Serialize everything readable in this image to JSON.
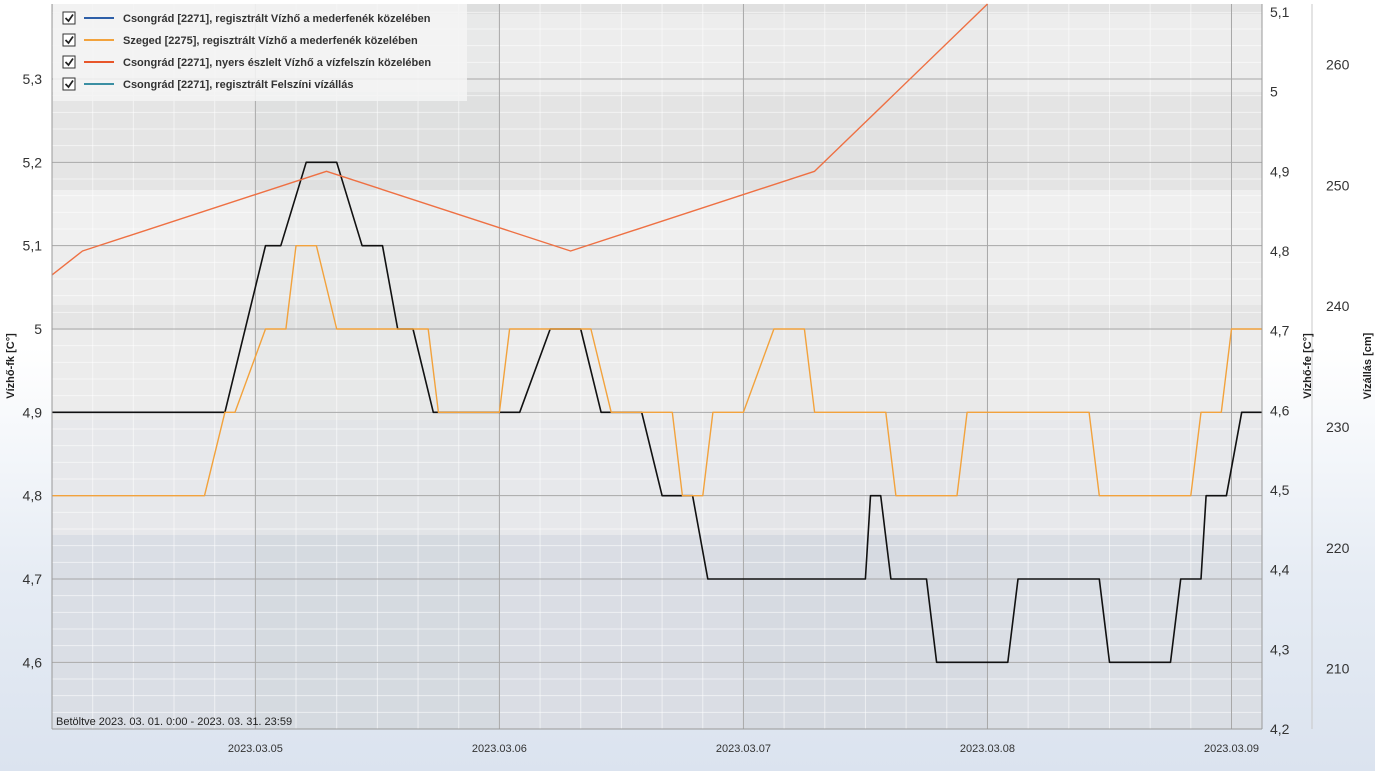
{
  "status_text": "Betöltve 2023. 03. 01. 0:00 - 2023. 03. 31. 23:59",
  "chart_data": {
    "type": "line",
    "x_tick_labels": [
      "2023.03.05",
      "2023.03.06",
      "2023.03.07",
      "2023.03.08",
      "2023.03.09"
    ],
    "x_range": [
      "2023-03-04 04:00",
      "2023-03-09 03:00"
    ],
    "grid": true,
    "legend_placement": "top-left",
    "axes": {
      "left": {
        "label": "Vízhő-fk [C°]",
        "range": [
          4.52,
          5.39
        ],
        "ticks": [
          "4,6",
          "4,7",
          "4,8",
          "4,9",
          "5",
          "5,1",
          "5,2",
          "5,3"
        ]
      },
      "right1": {
        "label": "Vízhő-fe [C°]",
        "range": [
          4.2,
          5.11
        ],
        "ticks": [
          "4,2",
          "4,3",
          "4,4",
          "4,5",
          "4,6",
          "4,7",
          "4,8",
          "4,9",
          "5",
          "5,1"
        ]
      },
      "right2": {
        "label": "Vízállás [cm]",
        "range": [
          205,
          265
        ],
        "ticks": [
          "210",
          "220",
          "230",
          "240",
          "250",
          "260"
        ]
      }
    },
    "series": [
      {
        "name": "Csongrád [2271], regisztrált Vízhő a mederfenék közelében",
        "legend_color": "#2e5fa8",
        "color": "#111111",
        "axis": "left",
        "points": [
          [
            "2023-03-04 04:00",
            4.9
          ],
          [
            "2023-03-04 21:00",
            4.9
          ],
          [
            "2023-03-05 01:00",
            5.1
          ],
          [
            "2023-03-05 02:30",
            5.1
          ],
          [
            "2023-03-05 05:00",
            5.2
          ],
          [
            "2023-03-05 08:00",
            5.2
          ],
          [
            "2023-03-05 10:30",
            5.1
          ],
          [
            "2023-03-05 12:00",
            5.1
          ],
          [
            "2023-03-05 12:30",
            5.1
          ],
          [
            "2023-03-05 14:00",
            5.0
          ],
          [
            "2023-03-05 15:30",
            5.0
          ],
          [
            "2023-03-05 17:30",
            4.9
          ],
          [
            "2023-03-06 02:00",
            4.9
          ],
          [
            "2023-03-06 05:00",
            5.0
          ],
          [
            "2023-03-06 08:00",
            5.0
          ],
          [
            "2023-03-06 10:00",
            4.9
          ],
          [
            "2023-03-06 14:00",
            4.9
          ],
          [
            "2023-03-06 16:00",
            4.8
          ],
          [
            "2023-03-06 19:00",
            4.8
          ],
          [
            "2023-03-06 20:30",
            4.7
          ],
          [
            "2023-03-07 12:00",
            4.7
          ],
          [
            "2023-03-07 12:30",
            4.8
          ],
          [
            "2023-03-07 13:30",
            4.8
          ],
          [
            "2023-03-07 14:30",
            4.7
          ],
          [
            "2023-03-07 18:00",
            4.7
          ],
          [
            "2023-03-07 19:00",
            4.6
          ],
          [
            "2023-03-08 02:00",
            4.6
          ],
          [
            "2023-03-08 03:00",
            4.7
          ],
          [
            "2023-03-08 11:00",
            4.7
          ],
          [
            "2023-03-08 12:00",
            4.6
          ],
          [
            "2023-03-08 18:00",
            4.6
          ],
          [
            "2023-03-08 19:00",
            4.7
          ],
          [
            "2023-03-08 21:00",
            4.7
          ],
          [
            "2023-03-08 21:30",
            4.8
          ],
          [
            "2023-03-08 23:30",
            4.8
          ],
          [
            "2023-03-09 01:00",
            4.9
          ],
          [
            "2023-03-09 03:00",
            4.9
          ]
        ]
      },
      {
        "name": "Szeged [2275], regisztrált Vízhő a mederfenék közelében",
        "legend_color": "#f2a23c",
        "color": "#f2a23c",
        "axis": "left",
        "points": [
          [
            "2023-03-04 04:00",
            4.8
          ],
          [
            "2023-03-04 19:00",
            4.8
          ],
          [
            "2023-03-04 21:00",
            4.9
          ],
          [
            "2023-03-04 22:00",
            4.9
          ],
          [
            "2023-03-05 01:00",
            5.0
          ],
          [
            "2023-03-05 03:00",
            5.0
          ],
          [
            "2023-03-05 04:00",
            5.1
          ],
          [
            "2023-03-05 06:00",
            5.1
          ],
          [
            "2023-03-05 08:00",
            5.0
          ],
          [
            "2023-03-05 17:00",
            5.0
          ],
          [
            "2023-03-05 18:00",
            4.9
          ],
          [
            "2023-03-06 00:00",
            4.9
          ],
          [
            "2023-03-06 01:00",
            5.0
          ],
          [
            "2023-03-06 09:00",
            5.0
          ],
          [
            "2023-03-06 11:00",
            4.9
          ],
          [
            "2023-03-06 17:00",
            4.9
          ],
          [
            "2023-03-06 18:00",
            4.8
          ],
          [
            "2023-03-06 20:00",
            4.8
          ],
          [
            "2023-03-06 21:00",
            4.9
          ],
          [
            "2023-03-07 00:00",
            4.9
          ],
          [
            "2023-03-07 03:00",
            5.0
          ],
          [
            "2023-03-07 06:00",
            5.0
          ],
          [
            "2023-03-07 07:00",
            4.9
          ],
          [
            "2023-03-07 14:00",
            4.9
          ],
          [
            "2023-03-07 15:00",
            4.8
          ],
          [
            "2023-03-07 21:00",
            4.8
          ],
          [
            "2023-03-07 22:00",
            4.9
          ],
          [
            "2023-03-08 10:00",
            4.9
          ],
          [
            "2023-03-08 11:00",
            4.8
          ],
          [
            "2023-03-08 20:00",
            4.8
          ],
          [
            "2023-03-08 21:00",
            4.9
          ],
          [
            "2023-03-08 23:00",
            4.9
          ],
          [
            "2023-03-09 00:00",
            5.0
          ],
          [
            "2023-03-09 03:00",
            5.0
          ]
        ]
      },
      {
        "name": "Csongrád [2271], nyers észlelt Vízhő a vízfelszín közelében",
        "legend_color": "#e8562a",
        "color": "#ee7043",
        "axis": "right1",
        "points": [
          [
            "2023-03-04 04:00",
            4.77
          ],
          [
            "2023-03-04 07:00",
            4.8
          ],
          [
            "2023-03-05 07:00",
            4.9
          ],
          [
            "2023-03-06 07:00",
            4.8
          ],
          [
            "2023-03-07 07:00",
            4.9
          ],
          [
            "2023-03-08 00:00",
            5.11
          ]
        ]
      },
      {
        "name": "Csongrád [2271], regisztrált Felszíni vízállás",
        "legend_color": "#3b8fa3",
        "color": "#3b8fa3",
        "axis": "right2",
        "points": []
      }
    ]
  }
}
